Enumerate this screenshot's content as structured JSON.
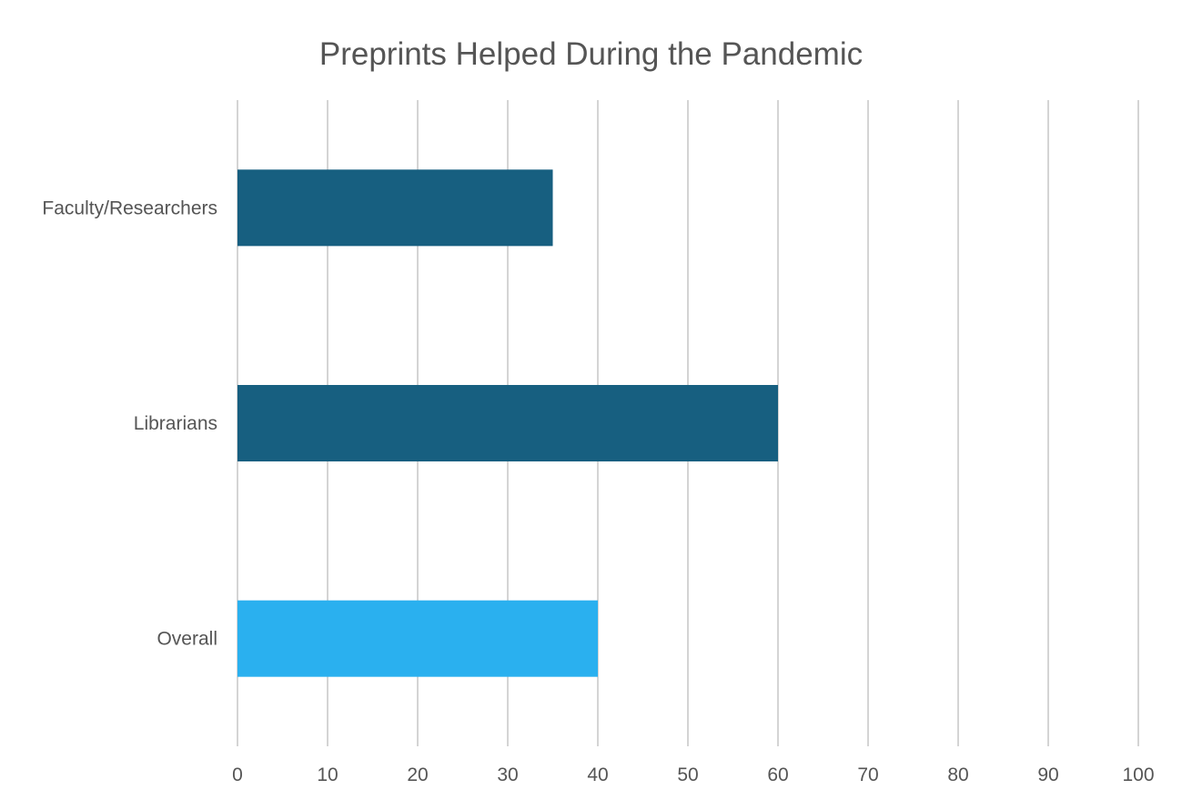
{
  "chart_data": {
    "type": "bar",
    "orientation": "horizontal",
    "title": "Preprints Helped During the Pandemic",
    "xlabel": "",
    "ylabel": "",
    "categories": [
      "Faculty/Researchers",
      "Librarians",
      "Overall"
    ],
    "values": [
      35,
      60,
      40
    ],
    "bar_colors": [
      "#175f80",
      "#175f80",
      "#2ab0ef"
    ],
    "xlim": [
      0,
      100
    ],
    "xticks": [
      0,
      10,
      20,
      30,
      40,
      50,
      60,
      70,
      80,
      90,
      100
    ],
    "grid": "vertical",
    "legend": "none"
  }
}
